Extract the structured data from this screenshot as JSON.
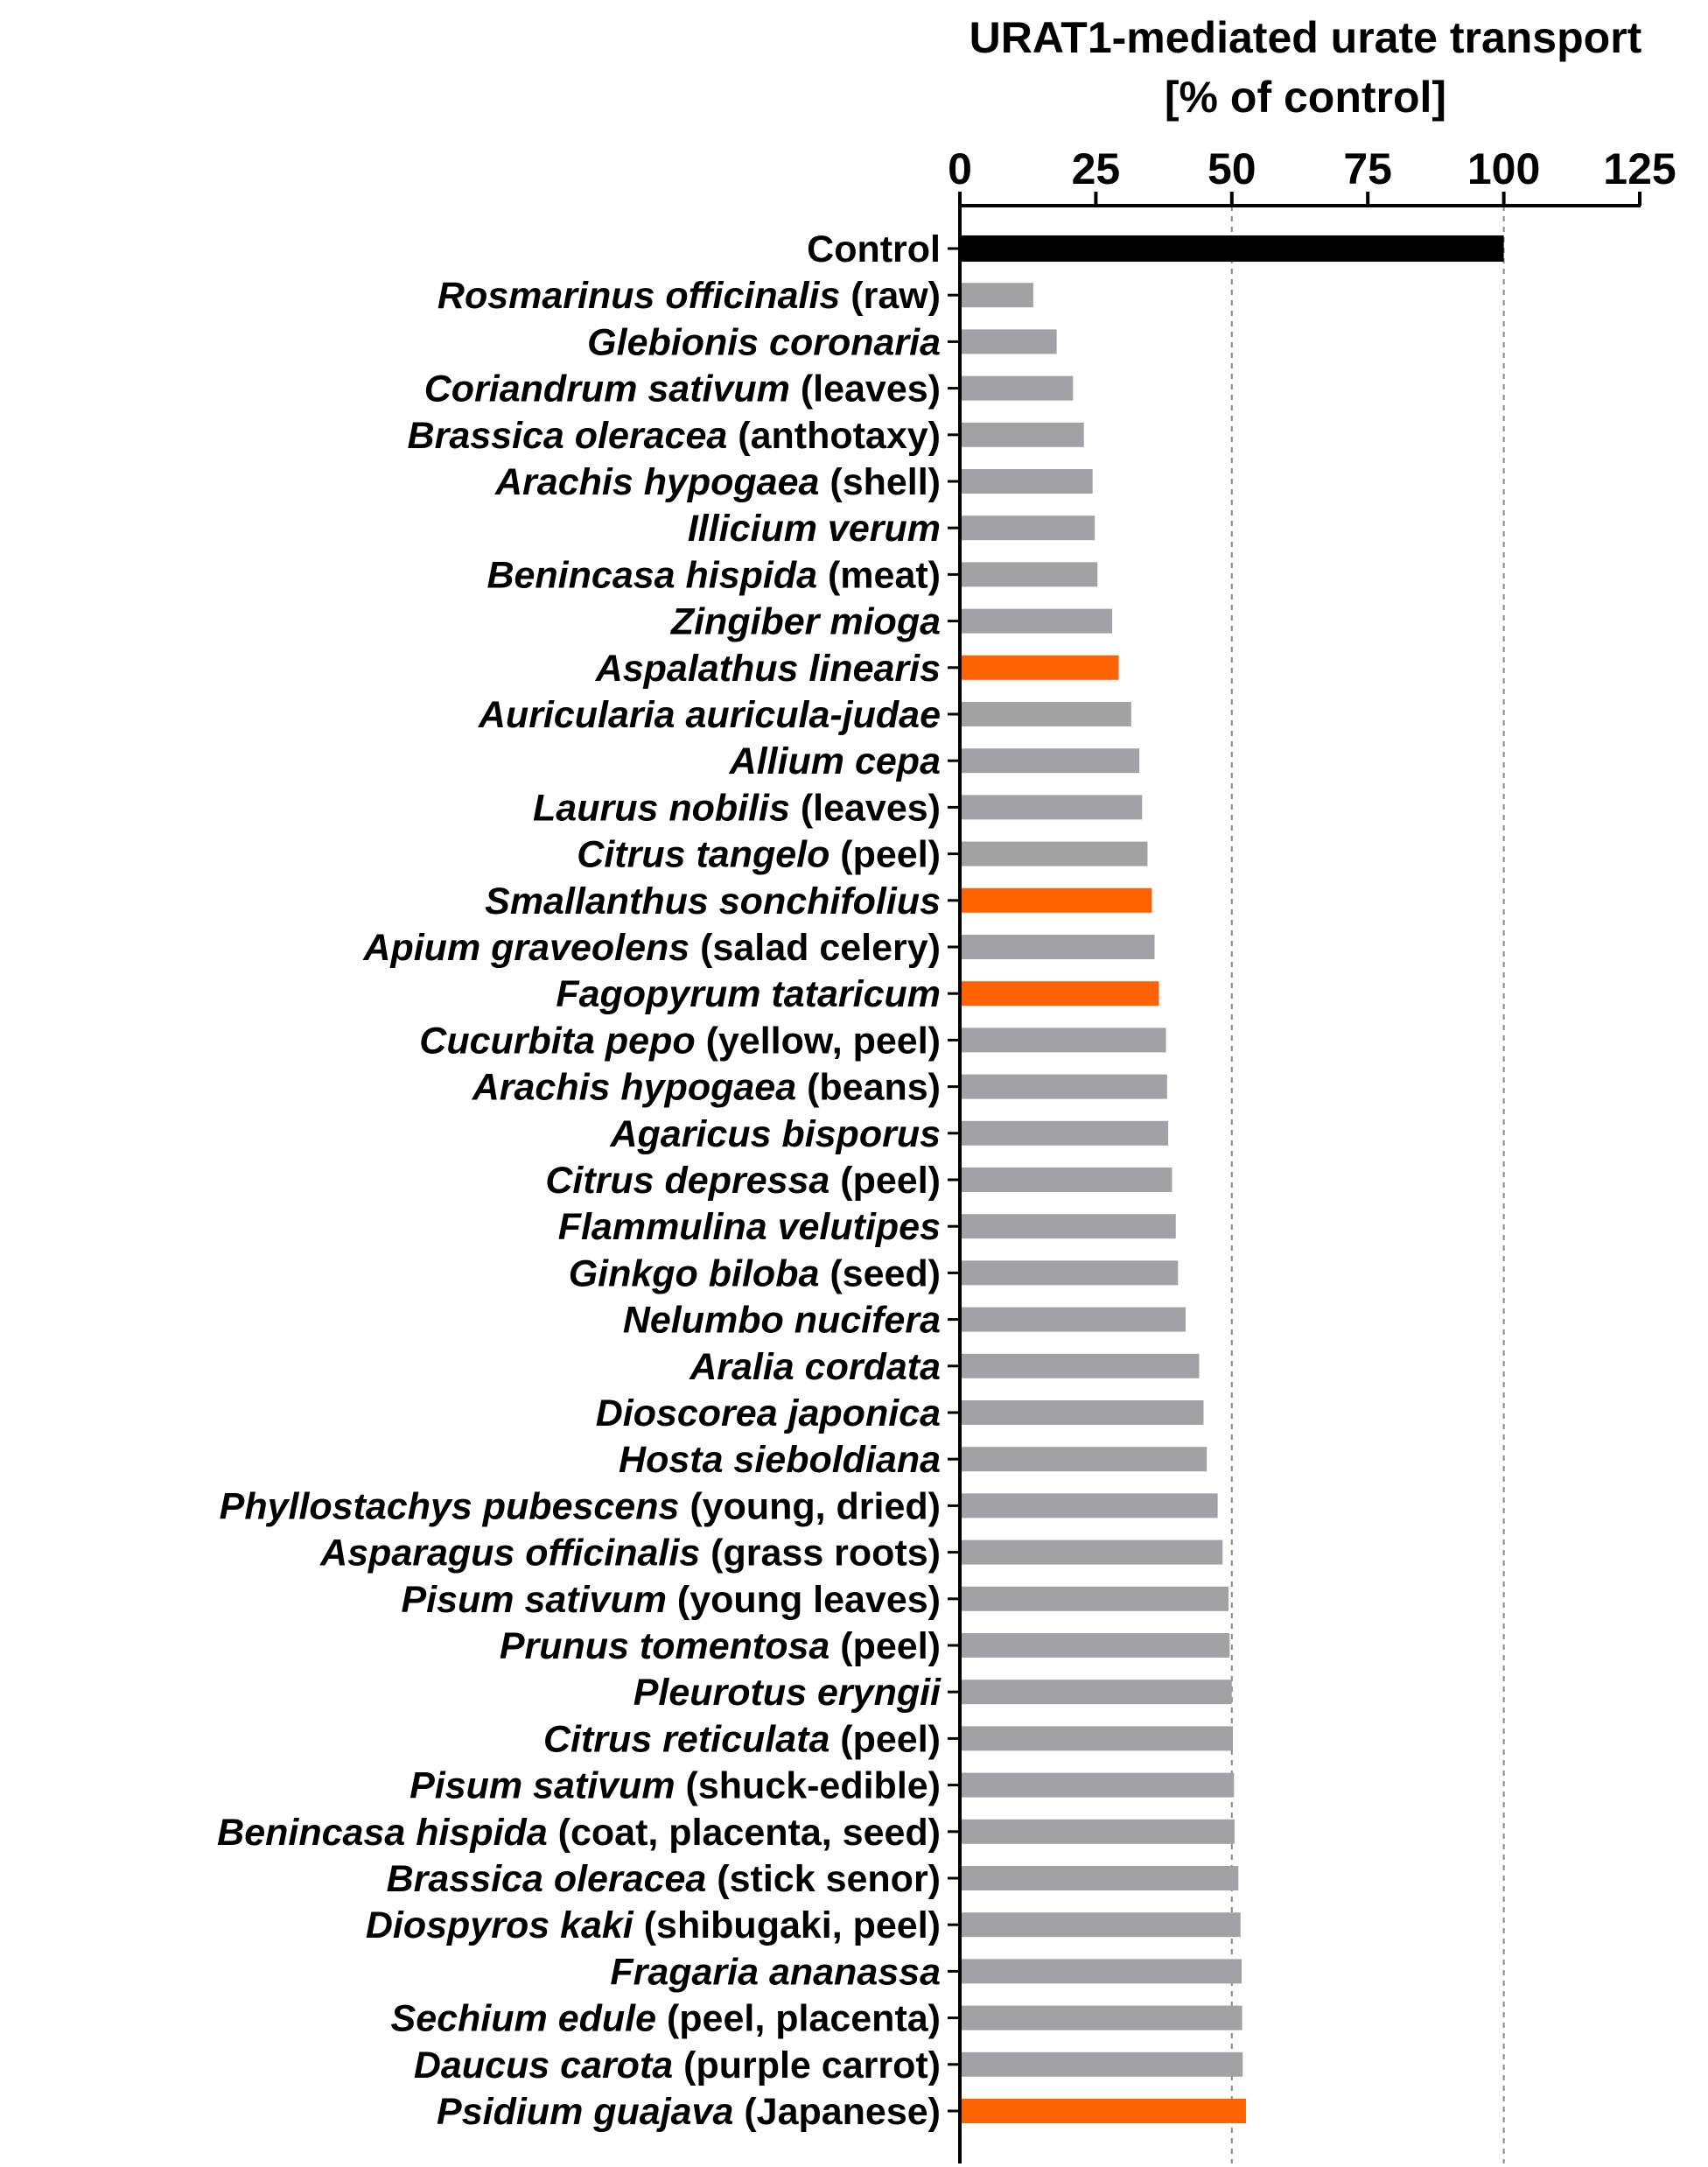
{
  "chart_data": {
    "type": "bar",
    "orientation": "horizontal",
    "title": "URAT1-mediated urate transport",
    "subtitle": "[% of control]",
    "xlabel": "URAT1-mediated urate transport [% of control]",
    "ylabel": "",
    "xlim": [
      0,
      125
    ],
    "ticks": [
      0,
      25,
      50,
      75,
      100,
      125
    ],
    "tick_labels": [
      "0",
      "25",
      "50",
      "75",
      "100",
      "125"
    ],
    "axis_position": "top",
    "reference_lines": [
      50,
      100
    ],
    "grid": false,
    "legend": "none",
    "colors": {
      "control": "#000000",
      "default": "#a2a2a6",
      "highlight": "#ff6200",
      "reference_line": "#888888"
    },
    "categories": [
      {
        "italic": "",
        "plain": "Control",
        "value": 100,
        "kind": "control"
      },
      {
        "italic": "Rosmarinus officinalis",
        "plain": " (raw)",
        "value": 13.5,
        "kind": "default"
      },
      {
        "italic": "Glebionis coronaria",
        "plain": "",
        "value": 17.8,
        "kind": "default"
      },
      {
        "italic": "Coriandrum sativum",
        "plain": " (leaves)",
        "value": 20.8,
        "kind": "default"
      },
      {
        "italic": "Brassica oleracea",
        "plain": " (anthotaxy)",
        "value": 22.8,
        "kind": "default"
      },
      {
        "italic": "Arachis hypogaea",
        "plain": " (shell)",
        "value": 24.4,
        "kind": "default"
      },
      {
        "italic": "Illicium verum",
        "plain": "",
        "value": 24.8,
        "kind": "default"
      },
      {
        "italic": "Benincasa hispida",
        "plain": " (meat)",
        "value": 25.3,
        "kind": "default"
      },
      {
        "italic": "Zingiber mioga",
        "plain": "",
        "value": 28.0,
        "kind": "default"
      },
      {
        "italic": "Aspalathus linearis",
        "plain": "",
        "value": 29.2,
        "kind": "highlight"
      },
      {
        "italic": "Auricularia auricula-judae",
        "plain": "",
        "value": 31.5,
        "kind": "default"
      },
      {
        "italic": "Allium cepa",
        "plain": "",
        "value": 33.0,
        "kind": "default"
      },
      {
        "italic": "Laurus nobilis",
        "plain": " (leaves)",
        "value": 33.5,
        "kind": "default"
      },
      {
        "italic": "Citrus tangelo",
        "plain": " (peel)",
        "value": 34.5,
        "kind": "default"
      },
      {
        "italic": "Smallanthus sonchifolius",
        "plain": "",
        "value": 35.3,
        "kind": "highlight"
      },
      {
        "italic": "Apium graveolens",
        "plain": " (salad celery)",
        "value": 35.8,
        "kind": "default"
      },
      {
        "italic": "Fagopyrum tataricum",
        "plain": "",
        "value": 36.6,
        "kind": "highlight"
      },
      {
        "italic": "Cucurbita pepo",
        "plain": " (yellow, peel)",
        "value": 37.9,
        "kind": "default"
      },
      {
        "italic": "Arachis hypogaea",
        "plain": " (beans)",
        "value": 38.1,
        "kind": "default"
      },
      {
        "italic": "Agaricus bisporus",
        "plain": "",
        "value": 38.3,
        "kind": "default"
      },
      {
        "italic": "Citrus depressa",
        "plain": " (peel)",
        "value": 39.0,
        "kind": "default"
      },
      {
        "italic": "Flammulina velutipes",
        "plain": "",
        "value": 39.7,
        "kind": "default"
      },
      {
        "italic": "Ginkgo biloba",
        "plain": " (seed)",
        "value": 40.1,
        "kind": "default"
      },
      {
        "italic": "Nelumbo nucifera",
        "plain": "",
        "value": 41.5,
        "kind": "default"
      },
      {
        "italic": "Aralia cordata",
        "plain": "",
        "value": 44.0,
        "kind": "default"
      },
      {
        "italic": "Dioscorea japonica",
        "plain": "",
        "value": 44.8,
        "kind": "default"
      },
      {
        "italic": "Hosta sieboldiana",
        "plain": "",
        "value": 45.4,
        "kind": "default"
      },
      {
        "italic": "Phyllostachys pubescens",
        "plain": " (young, dried)",
        "value": 47.4,
        "kind": "default"
      },
      {
        "italic": "Asparagus officinalis",
        "plain": " (grass roots)",
        "value": 48.3,
        "kind": "default"
      },
      {
        "italic": "Pisum sativum",
        "plain": " (young leaves)",
        "value": 49.4,
        "kind": "default"
      },
      {
        "italic": "Prunus tomentosa",
        "plain": " (peel)",
        "value": 49.6,
        "kind": "default"
      },
      {
        "italic": "Pleurotus eryngii",
        "plain": "",
        "value": 50.0,
        "kind": "default"
      },
      {
        "italic": "Citrus reticulata",
        "plain": " (peel)",
        "value": 50.2,
        "kind": "default"
      },
      {
        "italic": "Pisum sativum",
        "plain": " (shuck-edible)",
        "value": 50.4,
        "kind": "default"
      },
      {
        "italic": "Benincasa hispida",
        "plain": " (coat, placenta, seed)",
        "value": 50.5,
        "kind": "default"
      },
      {
        "italic": "Brassica oleracea",
        "plain": " (stick senor)",
        "value": 51.2,
        "kind": "default"
      },
      {
        "italic": "Diospyros kaki",
        "plain": " (shibugaki, peel)",
        "value": 51.6,
        "kind": "default"
      },
      {
        "italic": "Fragaria ananassa",
        "plain": "",
        "value": 51.8,
        "kind": "default"
      },
      {
        "italic": "Sechium edule",
        "plain": " (peel, placenta)",
        "value": 51.9,
        "kind": "default"
      },
      {
        "italic": "Daucus carota",
        "plain": " (purple carrot)",
        "value": 52.0,
        "kind": "default"
      },
      {
        "italic": "Psidium guajava",
        "plain": " (Japanese)",
        "value": 52.6,
        "kind": "highlight"
      }
    ]
  }
}
